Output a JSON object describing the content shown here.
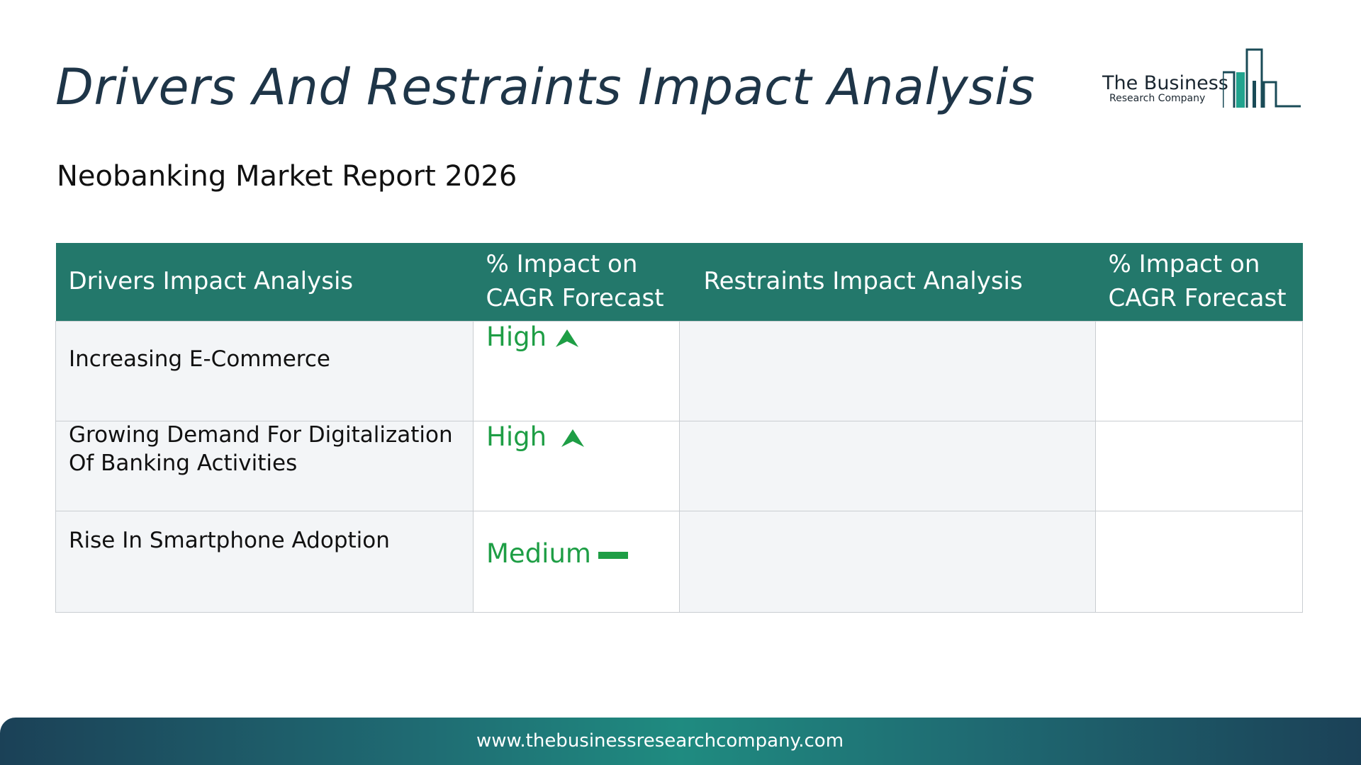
{
  "header": {
    "title": "Drivers And Restraints Impact Analysis",
    "subtitle": "Neobanking Market Report 2026"
  },
  "logo": {
    "line1": "The Business",
    "line2": "Research Company",
    "icon": "bar-chart-buildings-icon",
    "color": "#1f7a6d"
  },
  "table": {
    "headers": {
      "drivers": "Drivers Impact Analysis",
      "drivers_impact_line1": "% Impact on",
      "drivers_impact_line2": "CAGR Forecast",
      "restraints": "Restraints Impact Analysis",
      "restraints_impact_line1": "% Impact on",
      "restraints_impact_line2": "CAGR Forecast"
    },
    "rows": [
      {
        "driver": "Increasing E-Commerce",
        "impact": "High",
        "trend_icon": "up-arrow-icon",
        "restraint": "",
        "restraint_impact": ""
      },
      {
        "driver": "Growing Demand For Digitalization Of Banking Activities",
        "impact": "High",
        "trend_icon": "up-arrow-icon",
        "restraint": "",
        "restraint_impact": ""
      },
      {
        "driver": "Rise In Smartphone Adoption",
        "impact": "Medium",
        "trend_icon": "dash-icon",
        "restraint": "",
        "restraint_impact": ""
      }
    ],
    "colors": {
      "header_bg": "#23786b",
      "impact_text": "#1e9e45",
      "row_bg": "#f3f5f7"
    }
  },
  "footer": {
    "url": "www.thebusinessresearchcompany.com"
  }
}
